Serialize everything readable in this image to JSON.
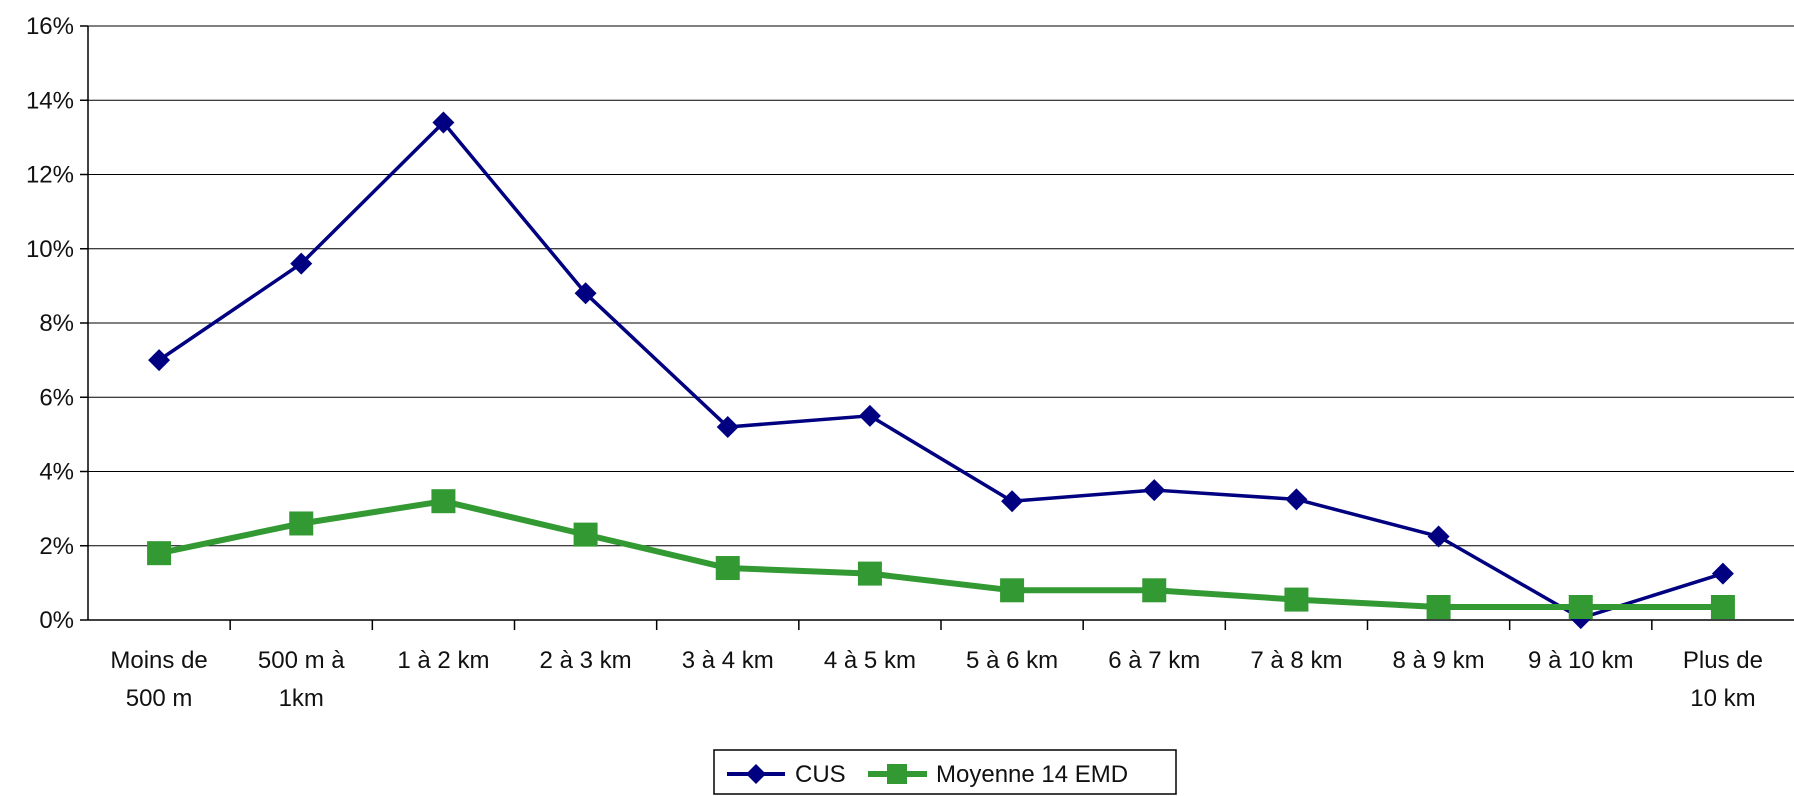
{
  "chart_data": {
    "type": "line",
    "title": "",
    "xlabel": "",
    "ylabel": "",
    "categories": [
      [
        "Moins de",
        "500 m"
      ],
      [
        "500 m à",
        "1km"
      ],
      [
        "1 à 2 km"
      ],
      [
        "2 à 3 km"
      ],
      [
        "3 à 4 km"
      ],
      [
        "4 à 5 km"
      ],
      [
        "5 à 6 km"
      ],
      [
        "6 à 7 km"
      ],
      [
        "7 à 8 km"
      ],
      [
        "8 à 9 km"
      ],
      [
        "9 à 10 km"
      ],
      [
        "Plus de",
        "10 km"
      ]
    ],
    "ylim": [
      0,
      16
    ],
    "yticks": [
      "0%",
      "2%",
      "4%",
      "6%",
      "8%",
      "10%",
      "12%",
      "14%",
      "16%"
    ],
    "grid": true,
    "legend_position": "bottom-center",
    "series": [
      {
        "name": "CUS",
        "marker": "diamond",
        "color": "#000080",
        "values": [
          7.0,
          9.6,
          13.4,
          8.8,
          5.2,
          5.5,
          3.2,
          3.5,
          3.25,
          2.25,
          0.05,
          1.25
        ]
      },
      {
        "name": "Moyenne 14 EMD",
        "marker": "square",
        "color": "#339933",
        "values": [
          1.8,
          2.6,
          3.2,
          2.3,
          1.4,
          1.25,
          0.8,
          0.8,
          0.55,
          0.35,
          0.35,
          0.35
        ]
      }
    ]
  }
}
